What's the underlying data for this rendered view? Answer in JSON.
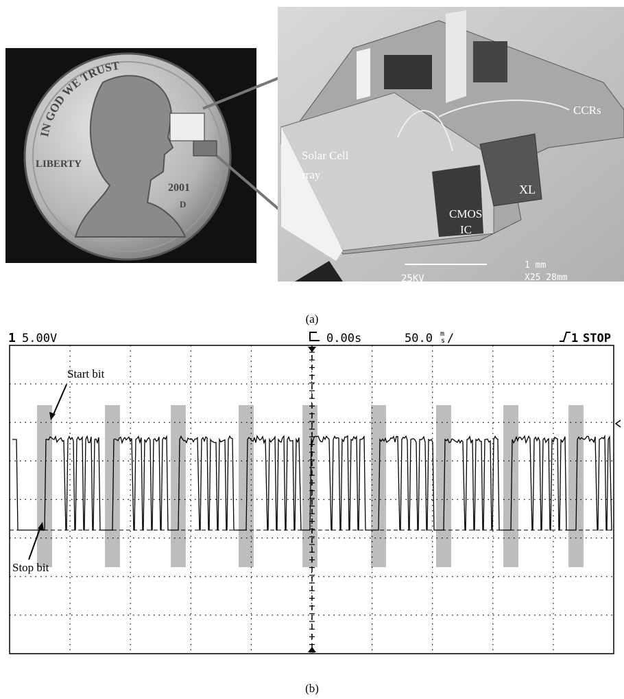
{
  "figure_a": {
    "coin": {
      "motto": "IN GOD WE TRUST",
      "liberty": "LIBERTY",
      "year": "2001",
      "mint": "D"
    },
    "sem_labels": {
      "solar_line1": "Solar Cell",
      "solar_line2": "rray",
      "ccrs": "CCRs",
      "xl": "XL",
      "cmos_line1": "CMOS",
      "cmos_line2": "IC",
      "scale": "1 mm",
      "voltage": "25KV",
      "magnification": "X25 28mm"
    },
    "caption": "(a)"
  },
  "figure_b": {
    "channel": "1",
    "volts": "5.00V",
    "time": "0.00s",
    "timebase": "50.0",
    "timebase_unit_top": "m",
    "timebase_unit_bottom": "s",
    "timebase_suffix": "/",
    "trigger": "1",
    "status": "STOP",
    "start_label": "Start bit",
    "stop_label": "Stop bit",
    "caption": "(b)"
  }
}
